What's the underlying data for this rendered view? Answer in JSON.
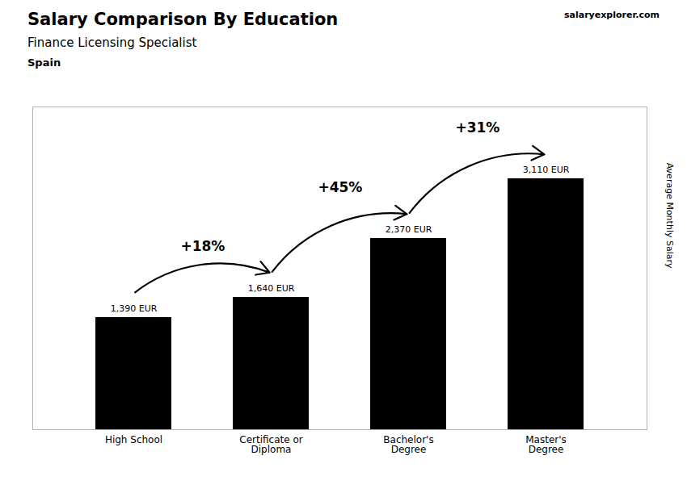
{
  "chart_data": {
    "type": "bar",
    "title": "Salary Comparison By Education",
    "subtitle": "Finance Licensing Specialist",
    "categories": [
      "High School",
      "Certificate or\nDiploma",
      "Bachelor's\nDegree",
      "Master's\nDegree"
    ],
    "values": [
      1390,
      1640,
      2370,
      3110
    ],
    "value_labels": [
      "1,390 EUR",
      "1,640 EUR",
      "2,370 EUR",
      "3,110 EUR"
    ],
    "data_labels": true,
    "ylabel": "Average Monthly Salary",
    "ylim": [
      0,
      4000
    ],
    "yticks": [],
    "tick_labels": "x",
    "grid": false,
    "annotations": [
      {
        "text": "Spain"
      },
      {
        "text": "salaryexplorer.com"
      },
      {
        "text": "+18%",
        "from": "High School",
        "to": "Certificate or\nDiploma"
      },
      {
        "text": "+45%",
        "from": "Certificate or\nDiploma",
        "to": "Bachelor's\nDegree"
      },
      {
        "text": "+31%",
        "from": "Bachelor's\nDegree",
        "to": "Master's\nDegree"
      }
    ]
  }
}
